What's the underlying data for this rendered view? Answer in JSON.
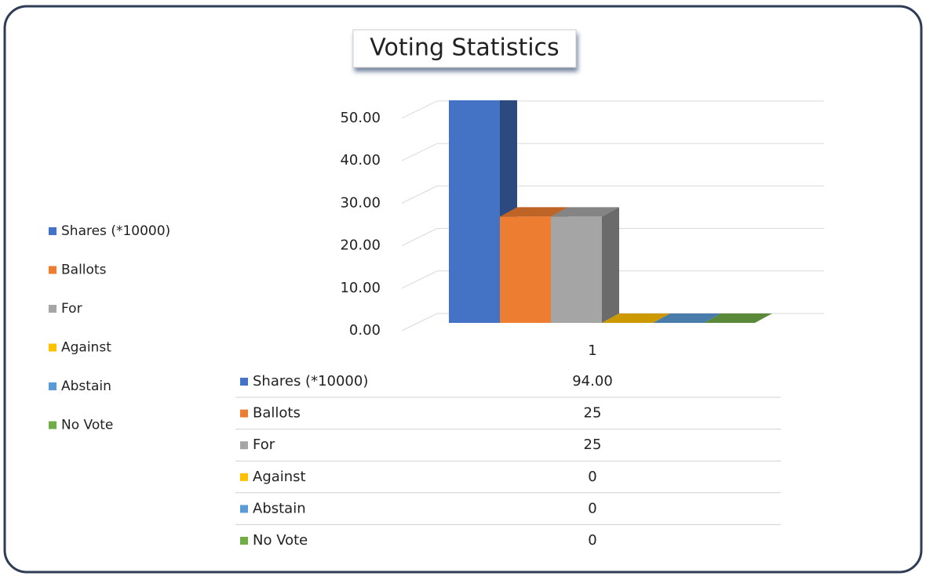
{
  "chart_data": {
    "type": "bar",
    "title": "Voting Statistics",
    "categories": [
      "1"
    ],
    "series": [
      {
        "name": "Shares (*10000)",
        "color": "#4472c4",
        "values": [
          94
        ],
        "value_labels": [
          "94.00"
        ]
      },
      {
        "name": "Ballots",
        "color": "#ed7d31",
        "values": [
          25
        ],
        "value_labels": [
          "25"
        ]
      },
      {
        "name": "For",
        "color": "#a5a5a5",
        "values": [
          25
        ],
        "value_labels": [
          "25"
        ]
      },
      {
        "name": "Against",
        "color": "#ffc000",
        "values": [
          0
        ],
        "value_labels": [
          "0"
        ]
      },
      {
        "name": "Abstain",
        "color": "#5b9bd5",
        "values": [
          0
        ],
        "value_labels": [
          "0"
        ]
      },
      {
        "name": "No Vote",
        "color": "#70ad47",
        "values": [
          0
        ],
        "value_labels": [
          "0"
        ]
      }
    ],
    "ylim": [
      0,
      52
    ],
    "yticks": [
      {
        "value": 0,
        "label": "0.00"
      },
      {
        "value": 10,
        "label": "10.00"
      },
      {
        "value": 20,
        "label": "20.00"
      },
      {
        "value": 30,
        "label": "30.00"
      },
      {
        "value": 40,
        "label": "40.00"
      },
      {
        "value": 50,
        "label": "50.00"
      }
    ],
    "grid": true,
    "legend": "left"
  }
}
